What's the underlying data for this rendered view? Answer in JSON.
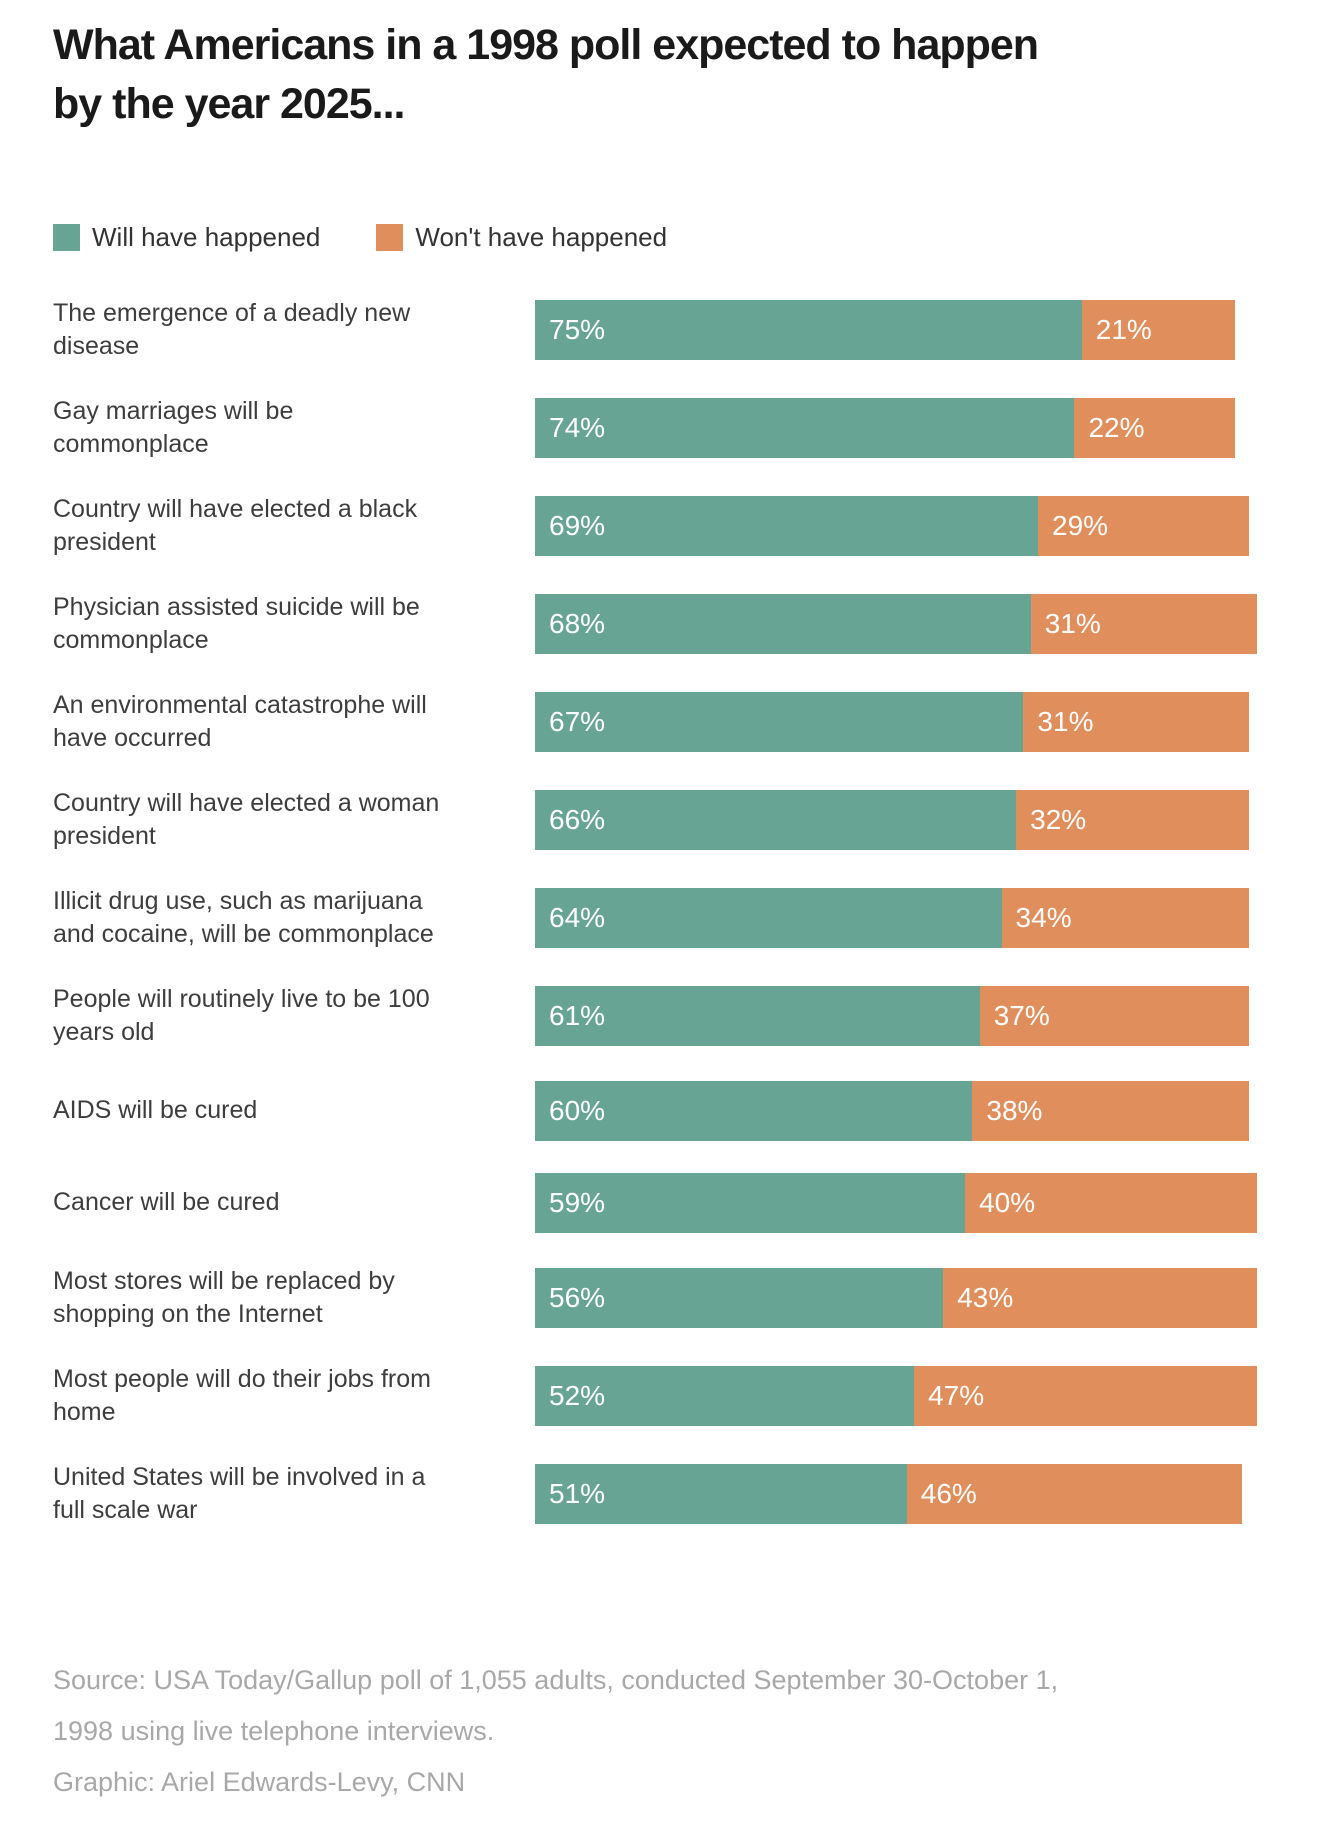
{
  "title": "What Americans in a 1998 poll expected to happen by the year 2025...",
  "legend": [
    {
      "label": "Will have happened",
      "color": "#68A494"
    },
    {
      "label": "Won't have happened",
      "color": "#E08F5C"
    }
  ],
  "chart_data": {
    "type": "bar",
    "orientation": "horizontal",
    "stacked": true,
    "grid": false,
    "legend_position": "top",
    "xlim": [
      0,
      100
    ],
    "value_suffix": "%",
    "categories": [
      "The emergence of a deadly new disease",
      "Gay marriages will be commonplace",
      "Country will have elected a black president",
      "Physician assisted suicide will be commonplace",
      "An environmental catastrophe will have occurred",
      "Country will have elected a woman president",
      "Illicit drug use, such as marijuana and cocaine, will be commonplace",
      "People will routinely live to be 100 years old",
      "AIDS will be cured",
      "Cancer will be cured",
      "Most stores will be replaced by shopping on the Internet",
      "Most people will do their jobs from home",
      "United States will be involved in a full scale war"
    ],
    "series": [
      {
        "name": "Will have happened",
        "color": "#68A494",
        "values": [
          75,
          74,
          69,
          68,
          67,
          66,
          64,
          61,
          60,
          59,
          56,
          52,
          51
        ]
      },
      {
        "name": "Won't have happened",
        "color": "#E08F5C",
        "values": [
          21,
          22,
          29,
          31,
          31,
          32,
          34,
          37,
          38,
          40,
          43,
          47,
          46
        ]
      }
    ]
  },
  "footer": {
    "source": "Source: USA Today/Gallup poll of 1,055 adults, conducted September 30-October 1, 1998 using live telephone interviews.",
    "credit": "Graphic: Ariel Edwards-Levy, CNN"
  }
}
